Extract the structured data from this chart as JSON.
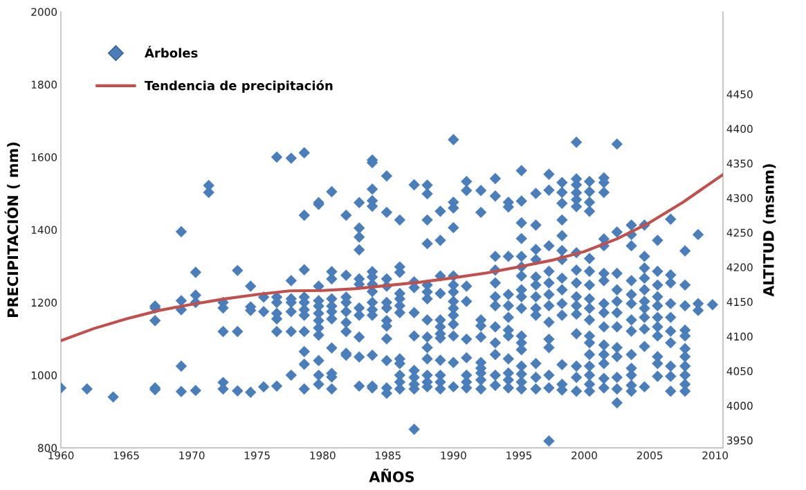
{
  "chart_data": {
    "type": "scatter",
    "xlabel": "AÑOS",
    "ylabel": "PRECIPITACIÓN ( mm)",
    "y2label": "ALTITUD (msnm)",
    "xlim": [
      1960,
      2010.6
    ],
    "xticks": [
      1960,
      1965,
      1970,
      1975,
      1980,
      1985,
      1990,
      1995,
      2000,
      2005,
      2010
    ],
    "ylim": [
      800,
      2000
    ],
    "yticks": [
      800,
      1000,
      1200,
      1400,
      1600,
      1800,
      2000
    ],
    "y2lim": [
      3939,
      4569
    ],
    "y2ticks": [
      3950,
      4000,
      4050,
      4100,
      4150,
      4200,
      4250,
      4300,
      4350,
      4400,
      4450
    ],
    "grid": false,
    "legend": "top left",
    "series": [
      {
        "name": "Árboles",
        "marker": "diamond",
        "color": "#4a7ebb",
        "x": [
          1960,
          1962,
          1964,
          1967.2,
          1967.2,
          1967.2,
          1967.2,
          1967.2,
          1969.2,
          1969.2,
          1969.2,
          1969.2,
          1969.2,
          1970.3,
          1970.3,
          1970.3,
          1970.3,
          1971.3,
          1971.3,
          1972.4,
          1972.4,
          1972.4,
          1972.4,
          1972.4,
          1973.5,
          1973.5,
          1973.5,
          1974.5,
          1974.5,
          1974.5,
          1974.5,
          1975.5,
          1975.5,
          1975.5,
          1976.5,
          1976.5,
          1976.5,
          1976.5,
          1976.5,
          1976.5,
          1976.5,
          1977.6,
          1977.6,
          1977.6,
          1977.6,
          1977.6,
          1977.6,
          1977.6,
          1978.6,
          1978.6,
          1978.6,
          1978.6,
          1978.6,
          1978.6,
          1978.6,
          1978.6,
          1978.6,
          1978.6,
          1978.6,
          1979.7,
          1979.7,
          1979.7,
          1979.7,
          1979.7,
          1979.7,
          1979.7,
          1979.7,
          1979.7,
          1979.7,
          1979.7,
          1979.7,
          1980.7,
          1980.7,
          1980.7,
          1980.7,
          1980.7,
          1980.7,
          1980.7,
          1980.7,
          1980.7,
          1980.7,
          1980.7,
          1981.8,
          1981.8,
          1981.8,
          1981.8,
          1981.8,
          1981.8,
          1981.8,
          1981.8,
          1981.8,
          1982.8,
          1982.8,
          1982.8,
          1982.8,
          1982.8,
          1982.8,
          1982.8,
          1982.8,
          1982.8,
          1982.8,
          1982.8,
          1983.8,
          1983.8,
          1983.8,
          1983.8,
          1983.8,
          1983.8,
          1983.8,
          1983.8,
          1983.8,
          1983.8,
          1983.8,
          1983.8,
          1983.8,
          1983.8,
          1983.8,
          1984.9,
          1984.9,
          1984.9,
          1984.9,
          1984.9,
          1984.9,
          1984.9,
          1984.9,
          1984.9,
          1984.9,
          1984.9,
          1984.9,
          1985.9,
          1985.9,
          1985.9,
          1985.9,
          1985.9,
          1985.9,
          1985.9,
          1985.9,
          1985.9,
          1985.9,
          1985.9,
          1985.9,
          1987,
          1987,
          1987,
          1987,
          1987,
          1987,
          1987,
          1987,
          1987,
          1987,
          1988,
          1988,
          1988,
          1988,
          1988,
          1988,
          1988,
          1988,
          1988,
          1988,
          1988,
          1988,
          1988,
          1988,
          1989,
          1989,
          1989,
          1989,
          1989,
          1989,
          1989,
          1989,
          1989,
          1989,
          1989,
          1989,
          1990,
          1990,
          1990,
          1990,
          1990,
          1990,
          1990,
          1990,
          1990,
          1990,
          1990,
          1990,
          1990,
          1990,
          1991,
          1991,
          1991,
          1991,
          1991,
          1991,
          1991,
          1991,
          1991,
          1992.1,
          1992.1,
          1992.1,
          1992.1,
          1992.1,
          1992.1,
          1992.1,
          1992.1,
          1992.1,
          1992.1,
          1993.2,
          1993.2,
          1993.2,
          1993.2,
          1993.2,
          1993.2,
          1993.2,
          1993.2,
          1993.2,
          1993.2,
          1993.2,
          1993.2,
          1994.2,
          1994.2,
          1994.2,
          1994.2,
          1994.2,
          1994.2,
          1994.2,
          1994.2,
          1994.2,
          1994.2,
          1994.2,
          1994.2,
          1995.2,
          1995.2,
          1995.2,
          1995.2,
          1995.2,
          1995.2,
          1995.2,
          1995.2,
          1995.2,
          1995.2,
          1995.2,
          1995.2,
          1995.2,
          1995.2,
          1995.2,
          1995.2,
          1995.2,
          1996.3,
          1996.3,
          1996.3,
          1996.3,
          1996.3,
          1996.3,
          1996.3,
          1996.3,
          1996.3,
          1996.3,
          1996.3,
          1996.3,
          1997.3,
          1997.3,
          1997.3,
          1997.3,
          1997.3,
          1997.3,
          1997.3,
          1997.3,
          1997.3,
          1997.3,
          1997.3,
          1997.3,
          1997.3,
          1998.3,
          1998.3,
          1998.3,
          1998.3,
          1998.3,
          1998.3,
          1998.3,
          1998.3,
          1998.3,
          1998.3,
          1998.3,
          1998.3,
          1998.3,
          1998.3,
          1999.4,
          1999.4,
          1999.4,
          1999.4,
          1999.4,
          1999.4,
          1999.4,
          1999.4,
          1999.4,
          1999.4,
          1999.4,
          1999.4,
          1999.4,
          1999.4,
          1999.4,
          1999.4,
          2000.4,
          2000.4,
          2000.4,
          2000.4,
          2000.4,
          2000.4,
          2000.4,
          2000.4,
          2000.4,
          2000.4,
          2000.4,
          2000.4,
          2000.4,
          2000.4,
          2000.4,
          2000.4,
          2000.4,
          2001.5,
          2001.5,
          2001.5,
          2001.5,
          2001.5,
          2001.5,
          2001.5,
          2001.5,
          2001.5,
          2001.5,
          2001.5,
          2001.5,
          2001.5,
          2001.5,
          2001.5,
          2002.5,
          2002.5,
          2002.5,
          2002.5,
          2002.5,
          2002.5,
          2002.5,
          2002.5,
          2002.5,
          2002.5,
          2002.5,
          2002.5,
          2003.6,
          2003.6,
          2003.6,
          2003.6,
          2003.6,
          2003.6,
          2003.6,
          2003.6,
          2003.6,
          2003.6,
          2003.6,
          2003.6,
          2003.6,
          2004.6,
          2004.6,
          2004.6,
          2004.6,
          2004.6,
          2004.6,
          2004.6,
          2004.6,
          2004.6,
          2004.6,
          2004.6,
          2005.6,
          2005.6,
          2005.6,
          2005.6,
          2005.6,
          2005.6,
          2005.6,
          2005.6,
          2005.6,
          2005.6,
          2005.6,
          2006.6,
          2006.6,
          2006.6,
          2006.6,
          2006.6,
          2006.6,
          2006.6,
          2006.6,
          2006.6,
          2006.6,
          2007.7,
          2007.7,
          2007.7,
          2007.7,
          2007.7,
          2007.7,
          2007.7,
          2007.7,
          2007.7,
          2007.7,
          2007.7,
          2008.7,
          2008.7,
          2008.7,
          2009.8
        ],
        "values": [
          965,
          962,
          940,
          1190,
          1185,
          1150,
          965,
          960,
          1395,
          1205,
          1180,
          1025,
          955,
          1283,
          1220,
          1200,
          958,
          1522,
          1503,
          1200,
          1185,
          1120,
          980,
          962,
          1288,
          1120,
          957,
          1245,
          1188,
          1178,
          953,
          1215,
          1175,
          968,
          1600,
          1215,
          1200,
          1170,
          1155,
          1120,
          970,
          1597,
          1260,
          1210,
          1200,
          1175,
          1120,
          1000,
          1612,
          1440,
          1290,
          1215,
          1200,
          1180,
          1165,
          1120,
          1065,
          1030,
          962,
          1475,
          1470,
          1245,
          1205,
          1190,
          1170,
          1150,
          1130,
          1110,
          1040,
          1000,
          975,
          1505,
          1285,
          1265,
          1210,
          1190,
          1175,
          1155,
          1075,
          1005,
          995,
          962,
          1440,
          1275,
          1215,
          1200,
          1175,
          1145,
          1120,
          1060,
          1055,
          1475,
          1405,
          1380,
          1345,
          1265,
          1250,
          1185,
          1165,
          1105,
          1050,
          970,
          1592,
          1585,
          1512,
          1480,
          1465,
          1285,
          1270,
          1250,
          1230,
          1200,
          1180,
          1165,
          1055,
          970,
          965,
          1548,
          1448,
          1265,
          1245,
          1200,
          1185,
          1150,
          1135,
          1100,
          1040,
          965,
          950,
          1427,
          1298,
          1283,
          1225,
          1210,
          1191,
          1172,
          1045,
          1032,
          1000,
          981,
          962,
          1524,
          1257,
          1241,
          1172,
          1108,
          1013,
          994,
          975,
          962,
          851,
          1523,
          1499,
          1427,
          1362,
          1248,
          1229,
          1210,
          1152,
          1105,
          1076,
          1045,
          1000,
          981,
          968,
          1451,
          1371,
          1273,
          1225,
          1152,
          1133,
          1114,
          1102,
          1041,
          1000,
          981,
          962,
          1648,
          1476,
          1460,
          1406,
          1273,
          1248,
          1229,
          1203,
          1184,
          1165,
          1140,
          1108,
          1035,
          968,
          1533,
          1508,
          1245,
          1203,
          1099,
          1048,
          1000,
          981,
          965,
          1508,
          1448,
          1152,
          1136,
          1105,
          1035,
          1019,
          1006,
          987,
          962,
          1541,
          1493,
          1327,
          1289,
          1254,
          1216,
          1191,
          1133,
          1089,
          1057,
          1000,
          972,
          1476,
          1463,
          1327,
          1222,
          1191,
          1159,
          1124,
          1108,
          1045,
          1006,
          987,
          965,
          1563,
          1479,
          1419,
          1376,
          1327,
          1298,
          1273,
          1235,
          1216,
          1184,
          1108,
          1089,
          1070,
          1025,
          1003,
          981,
          962,
          1500,
          1413,
          1346,
          1318,
          1270,
          1248,
          1216,
          1184,
          1165,
          1032,
          994,
          962,
          1553,
          1509,
          1356,
          1286,
          1254,
          1222,
          1191,
          1146,
          1099,
          1076,
          1000,
          965,
          819,
          1530,
          1503,
          1473,
          1427,
          1384,
          1343,
          1318,
          1267,
          1235,
          1197,
          1165,
          1029,
          975,
          959,
          1641,
          1540,
          1524,
          1502,
          1483,
          1464,
          1337,
          1289,
          1254,
          1216,
          1191,
          1168,
          1114,
          1025,
          994,
          956,
          1533,
          1505,
          1476,
          1451,
          1321,
          1286,
          1248,
          1210,
          1184,
          1152,
          1108,
          1089,
          1057,
          1025,
          1000,
          975,
          956,
          1543,
          1530,
          1503,
          1375,
          1356,
          1280,
          1260,
          1197,
          1172,
          1133,
          1083,
          1057,
          1032,
          991,
          965,
          1636,
          1394,
          1280,
          1235,
          1203,
          1172,
          1133,
          1076,
          1051,
          994,
          962,
          924,
          1413,
          1387,
          1356,
          1260,
          1222,
          1197,
          1152,
          1121,
          1057,
          1019,
          1000,
          972,
          956,
          1413,
          1327,
          1295,
          1267,
          1235,
          1203,
          1184,
          1159,
          1127,
          1079,
          968,
          1371,
          1286,
          1248,
          1216,
          1191,
          1159,
          1133,
          1108,
          1051,
          1032,
          997,
          1429,
          1276,
          1254,
          1197,
          1159,
          1121,
          1089,
          1025,
          997,
          956,
          1342,
          1248,
          1191,
          1124,
          1108,
          1073,
          1051,
          1025,
          1000,
          975,
          956,
          1387,
          1197,
          1178,
          1194
        ]
      },
      {
        "name": "Tendencia de precipitación",
        "type": "line",
        "marker": "none",
        "line_style": "solid",
        "color": "#c0504d",
        "x": [
          1960,
          1962.5,
          1965,
          1967.5,
          1970,
          1972.5,
          1975,
          1977.5,
          1980,
          1982.5,
          1985,
          1987.5,
          1990,
          1992.5,
          1995,
          1997.5,
          2000,
          2002.5,
          2005,
          2007.5,
          2010.6
        ],
        "values": [
          1095,
          1128,
          1155,
          1178,
          1195,
          1210,
          1222,
          1232,
          1233,
          1238,
          1247,
          1256,
          1268,
          1281,
          1298,
          1316,
          1340,
          1375,
          1420,
          1475,
          1552
        ]
      }
    ]
  }
}
